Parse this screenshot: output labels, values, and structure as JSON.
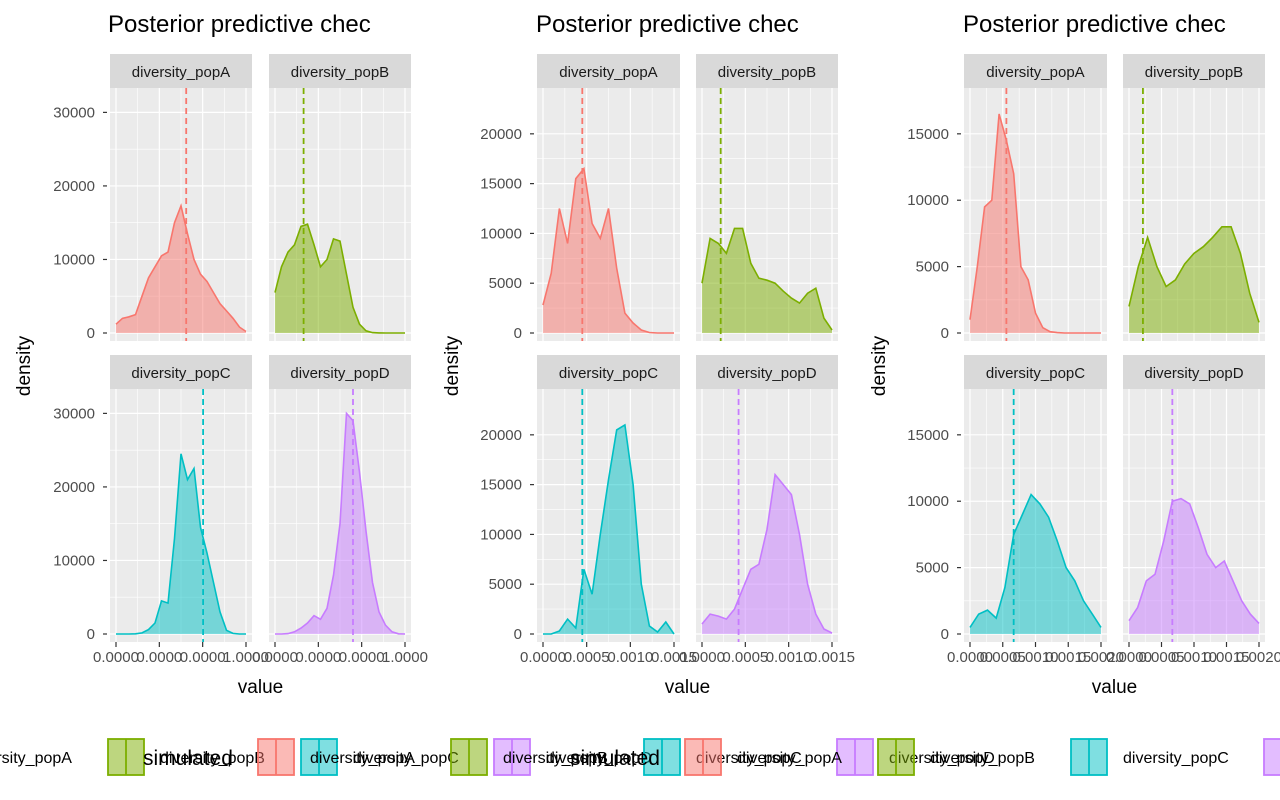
{
  "legend": {
    "title": "simulated",
    "entries": [
      {
        "label": "diversity_popA",
        "color": "#F8766D"
      },
      {
        "label": "diversity_popB",
        "color": "#7CAE00"
      },
      {
        "label": "diversity_popC",
        "color": "#00BFC4"
      },
      {
        "label": "diversity_popD",
        "color": "#C77CFF"
      }
    ]
  },
  "chart_data": [
    {
      "type": "area",
      "title": "Posterior predictive chec",
      "xlabel": "value",
      "ylabel": "density",
      "ylim": [
        0,
        32500
      ],
      "y_ticks": [
        0,
        10000,
        20000,
        30000
      ],
      "x_tick_labels": [
        "0.0000",
        "0.0000",
        "0.0000",
        "1.0000"
      ],
      "grid": true,
      "panels": [
        {
          "name": "diversity_popA",
          "color": "#F8766D",
          "observed": 0.54,
          "x": [
            0,
            0.05,
            0.1,
            0.15,
            0.2,
            0.25,
            0.3,
            0.35,
            0.4,
            0.45,
            0.5,
            0.55,
            0.6,
            0.65,
            0.7,
            0.75,
            0.8,
            0.85,
            0.9,
            0.95,
            1
          ],
          "y": [
            1200,
            2000,
            2200,
            2500,
            5000,
            7500,
            9000,
            10500,
            11000,
            15000,
            17300,
            13500,
            10000,
            8000,
            7000,
            5500,
            4000,
            3000,
            2000,
            800,
            200
          ]
        },
        {
          "name": "diversity_popB",
          "color": "#7CAE00",
          "observed": 0.22,
          "x": [
            0,
            0.05,
            0.1,
            0.15,
            0.2,
            0.25,
            0.3,
            0.35,
            0.4,
            0.45,
            0.5,
            0.55,
            0.6,
            0.65,
            0.7,
            0.75,
            0.8,
            0.85,
            0.9,
            0.95,
            1
          ],
          "y": [
            5500,
            9000,
            11000,
            12000,
            14500,
            14800,
            12000,
            9000,
            10000,
            12800,
            12500,
            8000,
            3500,
            1200,
            300,
            60,
            10,
            0,
            0,
            0,
            0
          ]
        },
        {
          "name": "diversity_popC",
          "color": "#00BFC4",
          "observed": 0.67,
          "x": [
            0,
            0.05,
            0.1,
            0.15,
            0.2,
            0.25,
            0.3,
            0.35,
            0.4,
            0.45,
            0.5,
            0.55,
            0.6,
            0.65,
            0.7,
            0.75,
            0.8,
            0.85,
            0.9,
            0.95,
            1
          ],
          "y": [
            0,
            0,
            0,
            30,
            150,
            600,
            1500,
            4500,
            4200,
            13000,
            24500,
            21000,
            22500,
            14500,
            11000,
            7000,
            3000,
            500,
            80,
            0,
            0
          ]
        },
        {
          "name": "diversity_popD",
          "color": "#C77CFF",
          "observed": 0.6,
          "x": [
            0,
            0.05,
            0.1,
            0.15,
            0.2,
            0.25,
            0.3,
            0.35,
            0.4,
            0.45,
            0.5,
            0.55,
            0.6,
            0.65,
            0.7,
            0.75,
            0.8,
            0.85,
            0.9,
            0.95,
            1
          ],
          "y": [
            0,
            0,
            50,
            300,
            800,
            1500,
            2500,
            2000,
            3500,
            8000,
            15000,
            30000,
            29000,
            22000,
            14000,
            7000,
            3000,
            1200,
            300,
            30,
            0
          ]
        }
      ]
    },
    {
      "type": "area",
      "title": "Posterior predictive chec",
      "xlabel": "value",
      "ylabel": "density",
      "ylim": [
        0,
        24000
      ],
      "y_ticks": [
        0,
        5000,
        10000,
        15000,
        20000
      ],
      "x_tick_labels": [
        "0.0000",
        "0.0005",
        "0.0010",
        "0.0015"
      ],
      "grid": true,
      "panels": [
        {
          "name": "diversity_popA",
          "color": "#F8766D",
          "observed": 0.00048,
          "x": [
            0,
            0.0001,
            0.0002,
            0.0003,
            0.0004,
            0.0005,
            0.0006,
            0.0007,
            0.0008,
            0.0009,
            0.001,
            0.0011,
            0.0012,
            0.0013,
            0.0014,
            0.0015,
            0.0016
          ],
          "y": [
            2800,
            6000,
            12500,
            9000,
            15500,
            16500,
            11000,
            9500,
            12500,
            6500,
            2000,
            1000,
            300,
            50,
            0,
            0,
            0
          ]
        },
        {
          "name": "diversity_popB",
          "color": "#7CAE00",
          "observed": 0.00023,
          "x": [
            0,
            0.0001,
            0.0002,
            0.0003,
            0.0004,
            0.0005,
            0.0006,
            0.0007,
            0.0008,
            0.0009,
            0.001,
            0.0011,
            0.0012,
            0.0013,
            0.0014,
            0.0015,
            0.0016
          ],
          "y": [
            5000,
            9500,
            9000,
            8000,
            10500,
            10500,
            7000,
            5500,
            5300,
            5000,
            4200,
            3500,
            3000,
            4000,
            4500,
            1500,
            300
          ]
        },
        {
          "name": "diversity_popC",
          "color": "#00BFC4",
          "observed": 0.00048,
          "x": [
            0,
            0.0001,
            0.0002,
            0.0003,
            0.0004,
            0.0005,
            0.0006,
            0.0007,
            0.0008,
            0.0009,
            0.001,
            0.0011,
            0.0012,
            0.0013,
            0.0014,
            0.0015,
            0.0016
          ],
          "y": [
            0,
            0,
            300,
            1500,
            600,
            6500,
            4000,
            10000,
            15500,
            20500,
            21000,
            15000,
            5000,
            800,
            200,
            1200,
            0
          ]
        },
        {
          "name": "diversity_popD",
          "color": "#C77CFF",
          "observed": 0.00045,
          "x": [
            0,
            0.0001,
            0.0002,
            0.0003,
            0.0004,
            0.0005,
            0.0006,
            0.0007,
            0.0008,
            0.0009,
            0.001,
            0.0011,
            0.0012,
            0.0013,
            0.0014,
            0.0015,
            0.0016
          ],
          "y": [
            1000,
            2000,
            1800,
            1500,
            2500,
            4500,
            6500,
            7000,
            10500,
            16000,
            15000,
            14000,
            10000,
            5000,
            2000,
            500,
            100
          ]
        }
      ]
    },
    {
      "type": "area",
      "title": "Posterior predictive chec",
      "xlabel": "value",
      "ylabel": "density",
      "ylim": [
        0,
        18000
      ],
      "y_ticks": [
        0,
        5000,
        10000,
        15000
      ],
      "x_tick_labels": [
        "0.0000",
        "0.0005",
        "0.0010",
        "0.0015",
        "0.0020"
      ],
      "grid": true,
      "panels": [
        {
          "name": "diversity_popA",
          "color": "#F8766D",
          "observed": 0.0005,
          "x": [
            0,
            0.0001,
            0.0002,
            0.0003,
            0.0004,
            0.0005,
            0.0006,
            0.0007,
            0.0008,
            0.0009,
            0.001,
            0.0011,
            0.0012,
            0.0013,
            0.0014,
            0.0015,
            0.0016,
            0.0017,
            0.0018
          ],
          "y": [
            1000,
            5000,
            9500,
            10000,
            16500,
            14500,
            12000,
            5000,
            4000,
            1500,
            400,
            100,
            30,
            0,
            0,
            0,
            0,
            0,
            0
          ]
        },
        {
          "name": "diversity_popB",
          "color": "#7CAE00",
          "observed": 0.00015,
          "x": [
            0,
            0.0001,
            0.0002,
            0.0003,
            0.0004,
            0.0005,
            0.0006,
            0.0007,
            0.0008,
            0.0009,
            0.001,
            0.0011,
            0.0012,
            0.0013,
            0.0014
          ],
          "y": [
            2000,
            5000,
            7200,
            5000,
            3500,
            4000,
            5200,
            6000,
            6500,
            7200,
            8000,
            8000,
            6000,
            3000,
            800
          ]
        },
        {
          "name": "diversity_popC",
          "color": "#00BFC4",
          "observed": 0.0005,
          "x": [
            0,
            0.0001,
            0.0002,
            0.0003,
            0.0004,
            0.0005,
            0.0006,
            0.0007,
            0.0008,
            0.0009,
            0.001,
            0.0011,
            0.0012,
            0.0013,
            0.0014,
            0.0015
          ],
          "y": [
            500,
            1500,
            1800,
            1200,
            3500,
            7500,
            9000,
            10500,
            9800,
            8800,
            7000,
            5000,
            4000,
            2500,
            1500,
            500
          ]
        },
        {
          "name": "diversity_popD",
          "color": "#C77CFF",
          "observed": 0.0005,
          "x": [
            0,
            0.0001,
            0.0002,
            0.0003,
            0.0004,
            0.0005,
            0.0006,
            0.0007,
            0.0008,
            0.0009,
            0.001,
            0.0011,
            0.0012,
            0.0013,
            0.0014,
            0.0015
          ],
          "y": [
            1000,
            2000,
            4000,
            4500,
            7000,
            10000,
            10200,
            9800,
            8000,
            6000,
            5000,
            5500,
            4000,
            2500,
            1500,
            800
          ]
        }
      ]
    }
  ]
}
